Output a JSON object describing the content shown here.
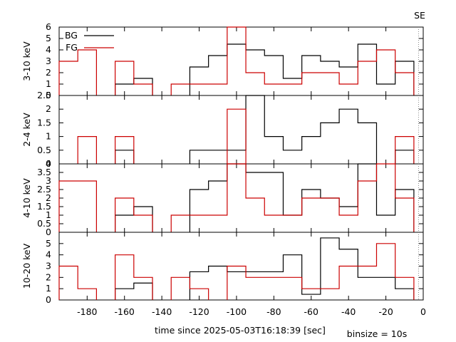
{
  "chart_data": {
    "type": "step",
    "corner_label": "SE",
    "xlabel": "time since 2025-05-03T16:18:39 [sec]",
    "binsize_label": "binsize = 10s",
    "x_ticks": [
      -180,
      -160,
      -140,
      -120,
      -100,
      -80,
      -60,
      -40,
      -20,
      0
    ],
    "xlim": [
      -195,
      0
    ],
    "marker_x": -2.5,
    "bin_edges": [
      -195,
      -185,
      -175,
      -165,
      -155,
      -145,
      -135,
      -125,
      -115,
      -105,
      -95,
      -85,
      -75,
      -65,
      -55,
      -45,
      -35,
      -25,
      -15,
      -5
    ],
    "series_styles": [
      {
        "name": "BG",
        "color": "#000000"
      },
      {
        "name": "FG",
        "color": "#cc0000"
      }
    ],
    "panels": [
      {
        "ylabel": "3-10 keV",
        "ylim": [
          0,
          6
        ],
        "y_ticks": [
          0,
          1,
          2,
          3,
          4,
          5,
          6
        ],
        "legend": true,
        "bg": [
          null,
          null,
          null,
          1,
          1.5,
          null,
          null,
          2.5,
          3.5,
          4.5,
          4,
          3.5,
          1.5,
          3.5,
          3,
          2.5,
          4.5,
          1,
          3
        ],
        "fg": [
          3,
          4,
          null,
          3,
          1,
          null,
          1,
          1,
          1,
          6,
          2,
          1,
          1,
          2,
          2,
          1,
          3,
          4,
          2
        ]
      },
      {
        "ylabel": "2-4 keV",
        "ylim": [
          0,
          2.5
        ],
        "y_ticks": [
          0,
          0.5,
          1,
          1.5,
          2,
          2.5
        ],
        "legend": false,
        "bg": [
          null,
          null,
          null,
          0.5,
          null,
          null,
          null,
          0.5,
          0.5,
          0.5,
          2.6,
          1,
          0.5,
          1,
          1.5,
          2,
          1.5,
          null,
          0.5
        ],
        "fg": [
          null,
          1,
          null,
          1,
          null,
          null,
          null,
          null,
          null,
          2,
          null,
          null,
          null,
          null,
          null,
          null,
          null,
          null,
          1
        ]
      },
      {
        "ylabel": "4-10 keV",
        "ylim": [
          0,
          4
        ],
        "y_ticks": [
          0,
          0.5,
          1,
          1.5,
          2,
          2.5,
          3,
          3.5,
          4
        ],
        "legend": false,
        "bg": [
          null,
          null,
          null,
          1,
          1.5,
          null,
          null,
          2.5,
          3,
          4,
          3.5,
          3.5,
          1,
          2.5,
          2,
          1.5,
          4,
          1,
          2.5
        ],
        "fg": [
          3,
          3,
          null,
          2,
          1,
          null,
          1,
          1,
          1,
          4,
          2,
          1,
          1,
          2,
          2,
          1,
          3,
          4,
          2
        ]
      },
      {
        "ylabel": "10-20 keV",
        "ylim": [
          0,
          6
        ],
        "y_ticks": [
          0,
          1,
          2,
          3,
          4,
          5
        ],
        "legend": false,
        "bg": [
          null,
          null,
          null,
          1,
          1.5,
          null,
          null,
          2.5,
          3,
          2.5,
          2.5,
          2.5,
          4,
          0.5,
          5.5,
          4.5,
          2,
          2,
          1
        ],
        "fg": [
          3,
          1,
          null,
          4,
          2,
          null,
          2,
          1,
          null,
          3,
          2,
          2,
          2,
          1,
          1,
          3,
          3,
          5,
          2
        ]
      }
    ]
  }
}
